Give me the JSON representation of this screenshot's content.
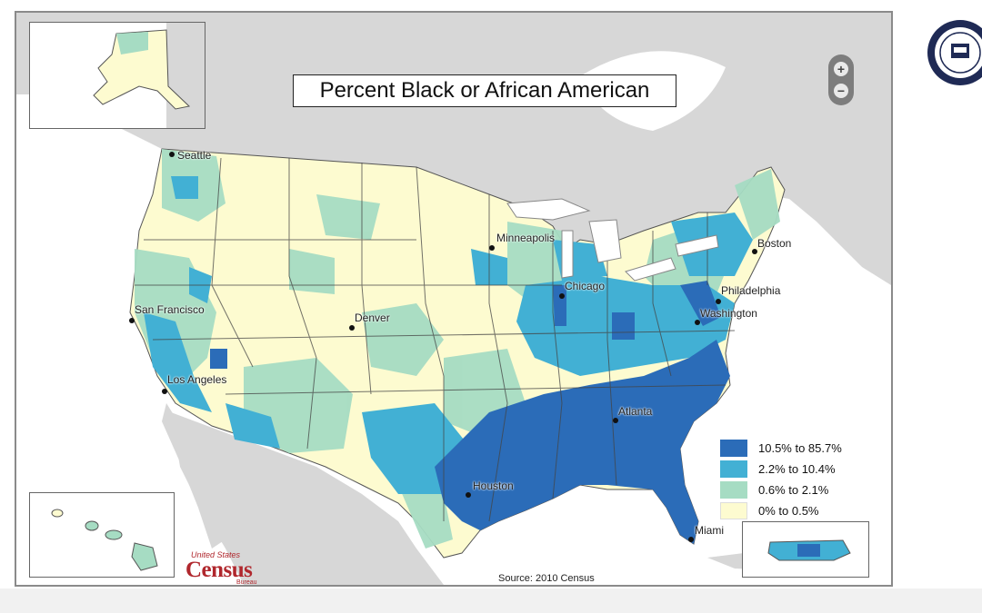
{
  "title": "Percent Black or African American",
  "source": "Source:  2010 Census",
  "logo": {
    "top": "United States",
    "main": "Census",
    "bottom": "Bureau"
  },
  "zoom": {
    "in_label": "+",
    "out_label": "−"
  },
  "legend": [
    {
      "label": "10.5% to 85.7%",
      "color": "#2b6cb8"
    },
    {
      "label": "2.2% to 10.4%",
      "color": "#42b0d4"
    },
    {
      "label": "0.6% to 2.1%",
      "color": "#a6dcc3"
    },
    {
      "label": "0% to 0.5%",
      "color": "#fdfbd0"
    }
  ],
  "cities": [
    {
      "name": "Seattle",
      "key": "seattle"
    },
    {
      "name": "San Francisco",
      "key": "sf"
    },
    {
      "name": "Los Angeles",
      "key": "la"
    },
    {
      "name": "Denver",
      "key": "denver"
    },
    {
      "name": "Minneapolis",
      "key": "minneapolis"
    },
    {
      "name": "Chicago",
      "key": "chicago"
    },
    {
      "name": "Boston",
      "key": "boston"
    },
    {
      "name": "Philadelphia",
      "key": "philadelphia"
    },
    {
      "name": "Washington",
      "key": "washington"
    },
    {
      "name": "Atlanta",
      "key": "atlanta"
    },
    {
      "name": "Houston",
      "key": "houston"
    },
    {
      "name": "Miami",
      "key": "miami"
    }
  ],
  "colors": {
    "land_background": "#d7d7d7",
    "water": "#ffffff",
    "high": "#2b6cb8",
    "mid": "#42b0d4",
    "low": "#a6dcc3",
    "lowest": "#fdfbd0"
  }
}
